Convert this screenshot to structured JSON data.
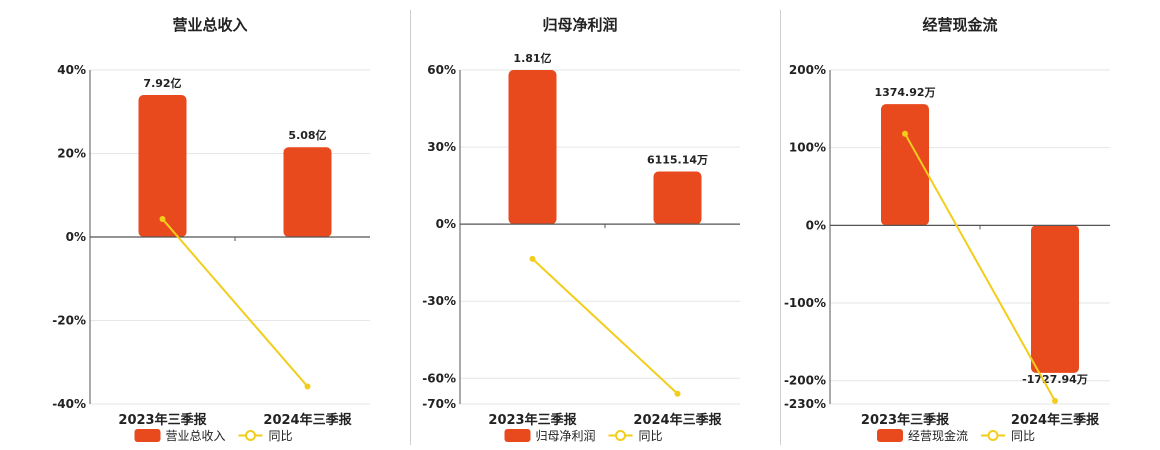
{
  "colors": {
    "bar": "#E8491D",
    "line": "#F2CD1B",
    "grid": "#e6e6e6",
    "axis": "#555555"
  },
  "chart_data": [
    {
      "type": "bar",
      "title": "营业总收入",
      "categories": [
        "2023年三季报",
        "2024年三季报"
      ],
      "series": [
        {
          "name": "营业总收入",
          "type": "bar",
          "values": [
            34,
            21.5
          ],
          "labels": [
            "7.92亿",
            "5.08亿"
          ]
        },
        {
          "name": "同比",
          "type": "line",
          "values": [
            4.3,
            -35.8
          ]
        }
      ],
      "ylim": [
        -40,
        40
      ],
      "yticks": [
        40,
        20,
        0,
        -20,
        -40
      ],
      "yticklabels": [
        "40%",
        "20%",
        "0%",
        "-20%",
        "-40%"
      ],
      "grid": true,
      "legend": "bottom"
    },
    {
      "type": "bar",
      "title": "归母净利润",
      "categories": [
        "2023年三季报",
        "2024年三季报"
      ],
      "series": [
        {
          "name": "归母净利润",
          "type": "bar",
          "values": [
            60,
            20.5
          ],
          "labels": [
            "1.81亿",
            "6115.14万"
          ]
        },
        {
          "name": "同比",
          "type": "line",
          "values": [
            -13.5,
            -66
          ]
        }
      ],
      "ylim": [
        -70,
        60
      ],
      "yticks": [
        60,
        30,
        0,
        -30,
        -60,
        -70
      ],
      "yticklabels": [
        "60%",
        "30%",
        "0%",
        "-30%",
        "-60%",
        "-70%"
      ],
      "grid": true,
      "legend": "bottom"
    },
    {
      "type": "bar",
      "title": "经营现金流",
      "categories": [
        "2023年三季报",
        "2024年三季报"
      ],
      "series": [
        {
          "name": "经营现金流",
          "type": "bar",
          "values": [
            156,
            -190
          ],
          "labels": [
            "1374.92万",
            "-1727.94万"
          ]
        },
        {
          "name": "同比",
          "type": "line",
          "values": [
            118,
            -226
          ]
        }
      ],
      "ylim": [
        -230,
        200
      ],
      "yticks": [
        200,
        100,
        0,
        -100,
        -200,
        -230
      ],
      "yticklabels": [
        "200%",
        "100%",
        "0%",
        "-100%",
        "-200%",
        "-230%"
      ],
      "grid": true,
      "legend": "bottom"
    }
  ]
}
